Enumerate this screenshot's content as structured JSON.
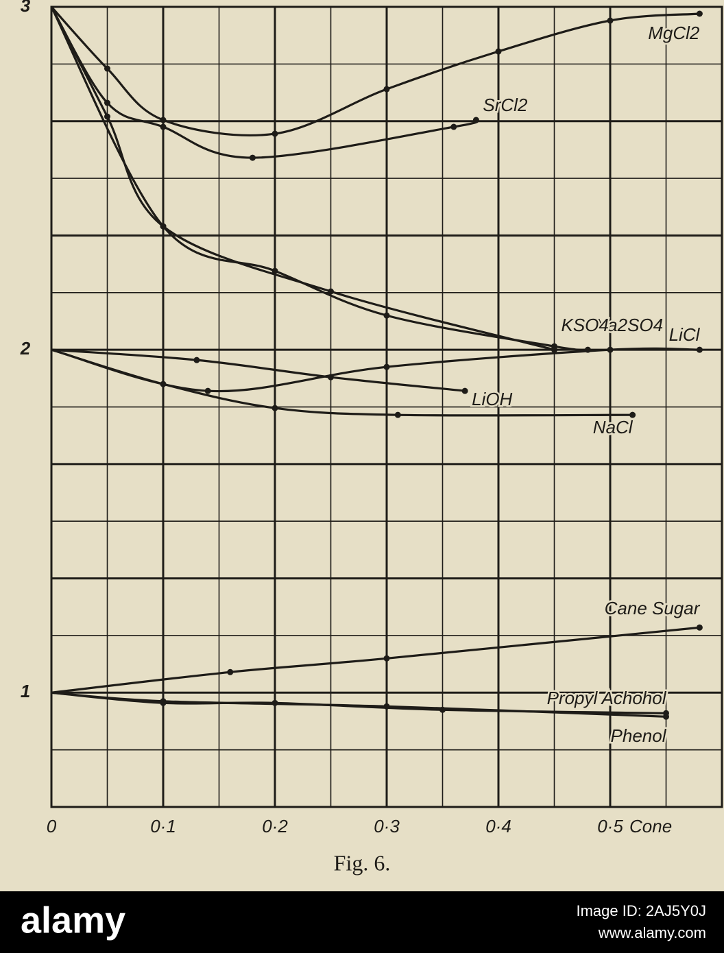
{
  "chart_data": {
    "type": "line",
    "x_label": "Cone",
    "caption": "Fig. 6.",
    "xlim": [
      0,
      0.6
    ],
    "ylim": [
      0.6667,
      3
    ],
    "xticks": [
      0,
      {
        "value": 0.1,
        "label": "0·1"
      },
      {
        "value": 0.2,
        "label": "0·2"
      },
      {
        "value": 0.3,
        "label": "0·3"
      },
      {
        "value": 0.4,
        "label": "0·4"
      },
      {
        "value": 0.5,
        "label": "0·5"
      }
    ],
    "yticks": [
      1,
      2,
      3
    ],
    "xgrid": [
      0,
      0.05,
      0.1,
      0.15,
      0.2,
      0.25,
      0.3,
      0.35,
      0.4,
      0.45,
      0.5,
      0.55,
      0.6
    ],
    "ygrid": [
      0.6667,
      0.8333,
      1,
      1.1667,
      1.3333,
      1.5,
      1.6667,
      1.8333,
      2,
      2.1667,
      2.3333,
      2.5,
      2.6667,
      2.8333,
      3
    ],
    "grid": true,
    "color": "#1e1c18",
    "series": [
      {
        "name": "MgCl2",
        "x": [
          0,
          0.05,
          0.1,
          0.2,
          0.3,
          0.4,
          0.5,
          0.58
        ],
        "values": [
          3,
          2.82,
          2.67,
          2.63,
          2.76,
          2.87,
          2.96,
          2.98
        ]
      },
      {
        "name": "SrCl2",
        "x": [
          0,
          0.05,
          0.1,
          0.18,
          0.36,
          0.38
        ],
        "values": [
          3,
          2.72,
          2.65,
          2.56,
          2.65,
          2.67
        ]
      },
      {
        "name": "Na2SO4",
        "x": [
          0,
          0.1,
          0.2,
          0.3,
          0.45,
          0.48
        ],
        "values": [
          3,
          2.36,
          2.23,
          2.1,
          2.01,
          2.0
        ]
      },
      {
        "name": "KSO4",
        "x": [
          0,
          0.05,
          0.1,
          0.25,
          0.45
        ],
        "values": [
          3,
          2.68,
          2.36,
          2.17,
          2.0
        ]
      },
      {
        "name": "LiCl",
        "x": [
          0,
          0.14,
          0.3,
          0.5,
          0.58
        ],
        "values": [
          2.0,
          1.88,
          1.95,
          2.0,
          2.0
        ]
      },
      {
        "name": "LiOH",
        "x": [
          0,
          0.13,
          0.25,
          0.37
        ],
        "values": [
          2.0,
          1.97,
          1.92,
          1.88
        ]
      },
      {
        "name": "NaCl",
        "x": [
          0,
          0.1,
          0.2,
          0.31,
          0.52
        ],
        "values": [
          2.0,
          1.9,
          1.83,
          1.81,
          1.81
        ]
      },
      {
        "name": "Cane Sugar",
        "x": [
          0,
          0.16,
          0.3,
          0.58
        ],
        "values": [
          1.0,
          1.06,
          1.1,
          1.19
        ]
      },
      {
        "name": "Propyl Achohol",
        "x": [
          0,
          0.1,
          0.2,
          0.35,
          0.55
        ],
        "values": [
          1.0,
          0.97,
          0.97,
          0.95,
          0.94
        ]
      },
      {
        "name": "Phenol",
        "x": [
          0,
          0.1,
          0.3,
          0.55
        ],
        "values": [
          1.0,
          0.975,
          0.96,
          0.93
        ]
      }
    ]
  },
  "watermark": {
    "brand": "alamy",
    "image_id": "Image ID: 2AJ5Y0J",
    "url": "www.alamy.com"
  }
}
